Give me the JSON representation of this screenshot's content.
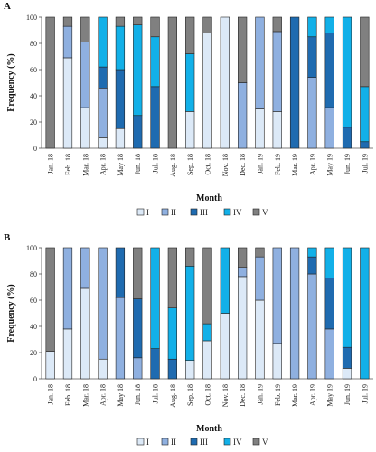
{
  "chart_data": [
    {
      "type": "bar",
      "panel_label": "A",
      "stacked": true,
      "categories": [
        "Jan. 18",
        "Feb. 18",
        "Mar. 18",
        "Apr. 18",
        "May 18",
        "Jun. 18",
        "Jul. 18",
        "Aug. 18",
        "Sep. 18",
        "Oct. 18",
        "Nov. 18",
        "Dec. 18",
        "Jan. 19",
        "Feb. 19",
        "Mar. 19",
        "Apr. 19",
        "May 19",
        "Jun. 19",
        "Jul. 19"
      ],
      "xlabel": "Month",
      "ylabel": "Frequency (%)",
      "ylim": [
        0,
        100
      ],
      "yticks": [
        0,
        20,
        40,
        60,
        80,
        100
      ],
      "grid": false,
      "legend_position": "bottom",
      "series": [
        {
          "name": "I",
          "color": "#dce9f7",
          "values": [
            0,
            69,
            31,
            8,
            15,
            0,
            0,
            0,
            28,
            88,
            100,
            0,
            30,
            28,
            0,
            0,
            0,
            0,
            0
          ]
        },
        {
          "name": "II",
          "color": "#8fb0e0",
          "values": [
            0,
            24,
            50,
            38,
            0,
            0,
            0,
            0,
            0,
            0,
            0,
            50,
            70,
            61,
            0,
            54,
            31,
            0,
            0
          ]
        },
        {
          "name": "III",
          "color": "#1f6bb0",
          "values": [
            0,
            0,
            0,
            16,
            45,
            25,
            47,
            0,
            0,
            0,
            0,
            0,
            0,
            0,
            100,
            31,
            57,
            16,
            5
          ]
        },
        {
          "name": "IV",
          "color": "#12b0e8",
          "values": [
            0,
            0,
            0,
            38,
            33,
            69,
            38,
            0,
            44,
            0,
            0,
            0,
            0,
            0,
            0,
            15,
            12,
            84,
            42
          ]
        },
        {
          "name": "V",
          "color": "#808080",
          "values": [
            100,
            7,
            19,
            0,
            7,
            6,
            15,
            100,
            28,
            12,
            0,
            50,
            0,
            11,
            0,
            0,
            0,
            0,
            53
          ]
        }
      ]
    },
    {
      "type": "bar",
      "panel_label": "B",
      "stacked": true,
      "categories": [
        "Jan. 18",
        "Feb. 18",
        "Mar. 18",
        "Apr. 18",
        "May 18",
        "Jun. 18",
        "Jul. 18",
        "Aug. 18",
        "Sep. 18",
        "Oct. 18",
        "Nov. 18",
        "Dec. 18",
        "Jan. 19",
        "Feb. 19",
        "Mar. 19",
        "Apr. 19",
        "May 19",
        "Jun. 19",
        "Jul. 19"
      ],
      "xlabel": "Month",
      "ylabel": "Frequency (%)",
      "ylim": [
        0,
        100
      ],
      "yticks": [
        0,
        20,
        40,
        60,
        80,
        100
      ],
      "grid": false,
      "legend_position": "bottom",
      "series": [
        {
          "name": "I",
          "color": "#dce9f7",
          "values": [
            21,
            38,
            69,
            15,
            0,
            0,
            0,
            0,
            14,
            29,
            50,
            78,
            60,
            27,
            0,
            0,
            0,
            8,
            0
          ]
        },
        {
          "name": "II",
          "color": "#8fb0e0",
          "values": [
            0,
            62,
            31,
            85,
            62,
            16,
            0,
            0,
            0,
            0,
            0,
            7,
            33,
            73,
            100,
            80,
            38,
            0,
            0
          ]
        },
        {
          "name": "III",
          "color": "#1f6bb0",
          "values": [
            0,
            0,
            0,
            0,
            38,
            45,
            23,
            15,
            0,
            0,
            0,
            0,
            0,
            0,
            0,
            13,
            39,
            16,
            0
          ]
        },
        {
          "name": "IV",
          "color": "#12b0e8",
          "values": [
            0,
            0,
            0,
            0,
            0,
            0,
            77,
            39,
            72,
            13,
            50,
            0,
            0,
            0,
            0,
            7,
            23,
            76,
            100
          ]
        },
        {
          "name": "V",
          "color": "#808080",
          "values": [
            79,
            0,
            0,
            0,
            0,
            39,
            0,
            46,
            14,
            58,
            0,
            15,
            7,
            0,
            0,
            0,
            0,
            0,
            0
          ]
        }
      ]
    }
  ]
}
